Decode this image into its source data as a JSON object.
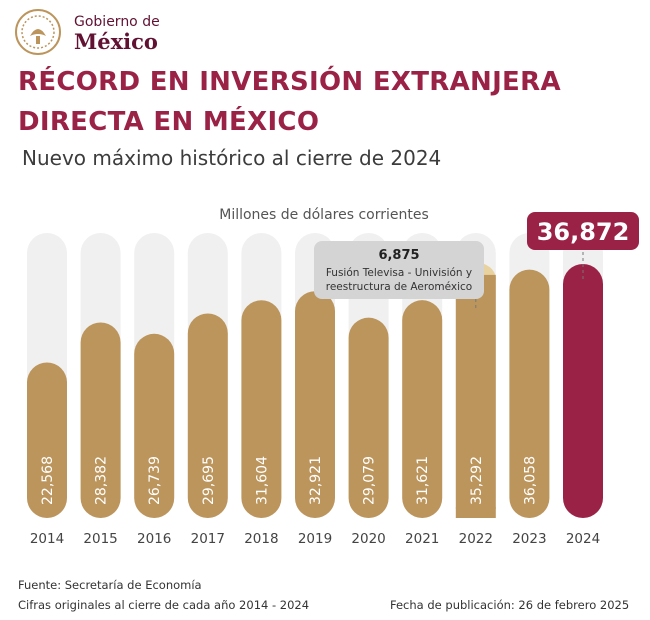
{
  "brand": {
    "line1": "Gobierno de",
    "line2": "México"
  },
  "header": {
    "title_line1": "RÉCORD EN INVERSIÓN EXTRANJERA",
    "title_line2": "DIRECTA EN MÉXICO",
    "subtitle": "Nuevo máximo histórico al cierre de 2024"
  },
  "colors": {
    "bar": "#bc955c",
    "bar_highlight": "#9b2247",
    "bar_bg": "#f0f0f0",
    "extra": "#e8d3a0",
    "callout_bg": "#d4d4d4",
    "title": "#9b2247"
  },
  "chart_data": {
    "type": "bar",
    "unit_label": "Millones de dólares corrientes",
    "categories": [
      "2014",
      "2015",
      "2016",
      "2017",
      "2018",
      "2019",
      "2020",
      "2021",
      "2022",
      "2023",
      "2024"
    ],
    "values": [
      22568,
      28382,
      26739,
      29695,
      31604,
      32921,
      29079,
      31621,
      35292,
      36058,
      36872
    ],
    "value_labels": [
      "22,568",
      "28,382",
      "26,739",
      "29,695",
      "31,604",
      "32,921",
      "29,079",
      "31,621",
      "35,292",
      "36,058",
      "36,872"
    ],
    "highlight_index": 10,
    "stacked_extra": {
      "index": 8,
      "value": 6875
    },
    "callout": {
      "value": "6,875",
      "text_line1": "Fusión Televisa - Univisión y",
      "text_line2": "reestructura de Aeroméxico"
    },
    "ylim": [
      0,
      47000
    ]
  },
  "footer": {
    "source": "Fuente: Secretaría de Economía",
    "note": "Cifras originales al cierre de cada año 2014 - 2024",
    "published": "Fecha de publicación: 26 de febrero 2025"
  }
}
